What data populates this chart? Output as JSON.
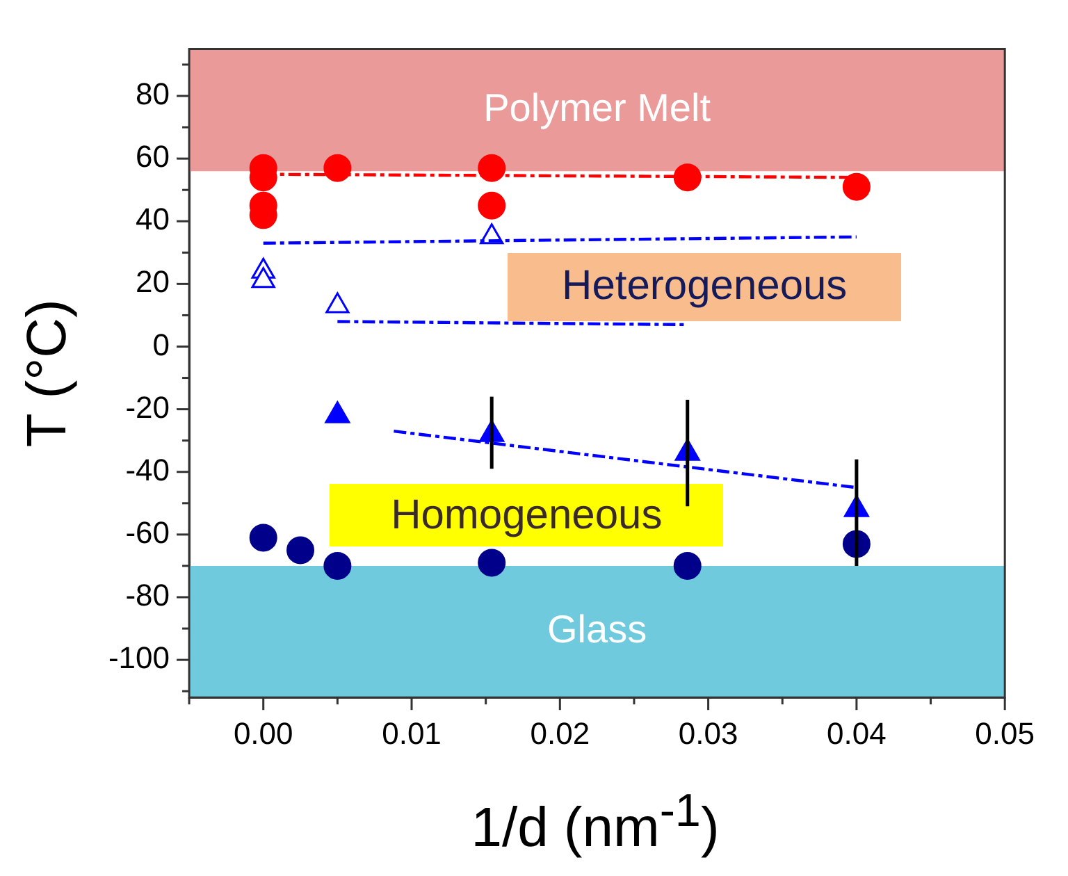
{
  "chart_data": {
    "type": "scatter",
    "xlabel": "1/d (nm$^{-1}$)",
    "ylabel": "T (°C)",
    "xlim": [
      -0.005,
      0.05
    ],
    "ylim": [
      -112,
      95
    ],
    "xticks": [
      {
        "value": -0.005,
        "label": null
      },
      {
        "value": 0,
        "label": "0.00"
      },
      {
        "value": 0.005,
        "label": null
      },
      {
        "value": 0.01,
        "label": "0.01"
      },
      {
        "value": 0.015,
        "label": null
      },
      {
        "value": 0.02,
        "label": "0.02"
      },
      {
        "value": 0.025,
        "label": null
      },
      {
        "value": 0.03,
        "label": "0.03"
      },
      {
        "value": 0.035,
        "label": null
      },
      {
        "value": 0.04,
        "label": "0.04"
      },
      {
        "value": 0.045,
        "label": null
      },
      {
        "value": 0.05,
        "label": "0.05"
      }
    ],
    "yticks": [
      {
        "value": -110,
        "label": null
      },
      -100,
      {
        "value": -90,
        "label": null
      },
      -80,
      {
        "value": -70,
        "label": null
      },
      -60,
      {
        "value": -50,
        "label": null
      },
      -40,
      {
        "value": -30,
        "label": null
      },
      -20,
      {
        "value": -10,
        "label": null
      },
      0,
      {
        "value": 10,
        "label": null
      },
      20,
      {
        "value": 30,
        "label": null
      },
      40,
      {
        "value": 50,
        "label": null
      },
      60,
      {
        "value": 70,
        "label": null
      },
      80,
      {
        "value": 90,
        "label": null
      }
    ],
    "series": [
      {
        "color": "#ff0000",
        "marker": "circle",
        "x": [
          0,
          0,
          0,
          0,
          0.005,
          0.0154,
          0.0154,
          0.0286,
          0.04
        ],
        "values": [
          57,
          54,
          45,
          42,
          57,
          57,
          45,
          54,
          51
        ]
      },
      {
        "color": "#0000ff",
        "marker": "triangle",
        "x": [
          0,
          0,
          0.005,
          0.0154
        ],
        "values": [
          24,
          21,
          13,
          35
        ]
      },
      {
        "color": "#0000ff",
        "marker": "triangle",
        "x": [
          0.005,
          0.0154,
          0.0286,
          0.04
        ],
        "values": [
          -22,
          -28,
          -34,
          -52
        ],
        "errors": [
          null,
          [
            -39,
            -16
          ],
          [
            -51,
            -17
          ],
          [
            -70,
            -36
          ]
        ]
      },
      {
        "color": "#00008b",
        "marker": "circle",
        "x": [
          0,
          0.0025,
          0.005,
          0.0154,
          0.0286,
          0.04
        ],
        "values": [
          -61,
          -65,
          -70,
          -69,
          -70,
          -63
        ]
      },
      {
        "type": "line",
        "color": "#ff0000",
        "line_style": "dashed",
        "x": [
          0,
          0.04
        ],
        "values": [
          55,
          54
        ]
      },
      {
        "type": "line",
        "color": "#0000ff",
        "line_style": "dashed",
        "x": [
          0,
          0.04
        ],
        "values": [
          33,
          35
        ]
      },
      {
        "type": "line",
        "color": "#0000ff",
        "line_style": "dashed",
        "x": [
          0.005,
          0.0286
        ],
        "values": [
          8,
          7
        ]
      },
      {
        "type": "line",
        "color": "#0000ff",
        "line_style": "dashed",
        "x": [
          0.0088,
          0.04
        ],
        "values": [
          -27,
          -45
        ]
      }
    ],
    "bands": [
      {
        "axis": "y",
        "from": 56,
        "to": 95,
        "label": "Polymer Melt",
        "color": "#eb9a9a"
      },
      {
        "axis": "y",
        "from": -112,
        "to": -70,
        "label": "Glass",
        "color": "#6ecadc"
      }
    ],
    "annotations": [
      "Heterogeneous",
      "Homogeneous"
    ]
  }
}
